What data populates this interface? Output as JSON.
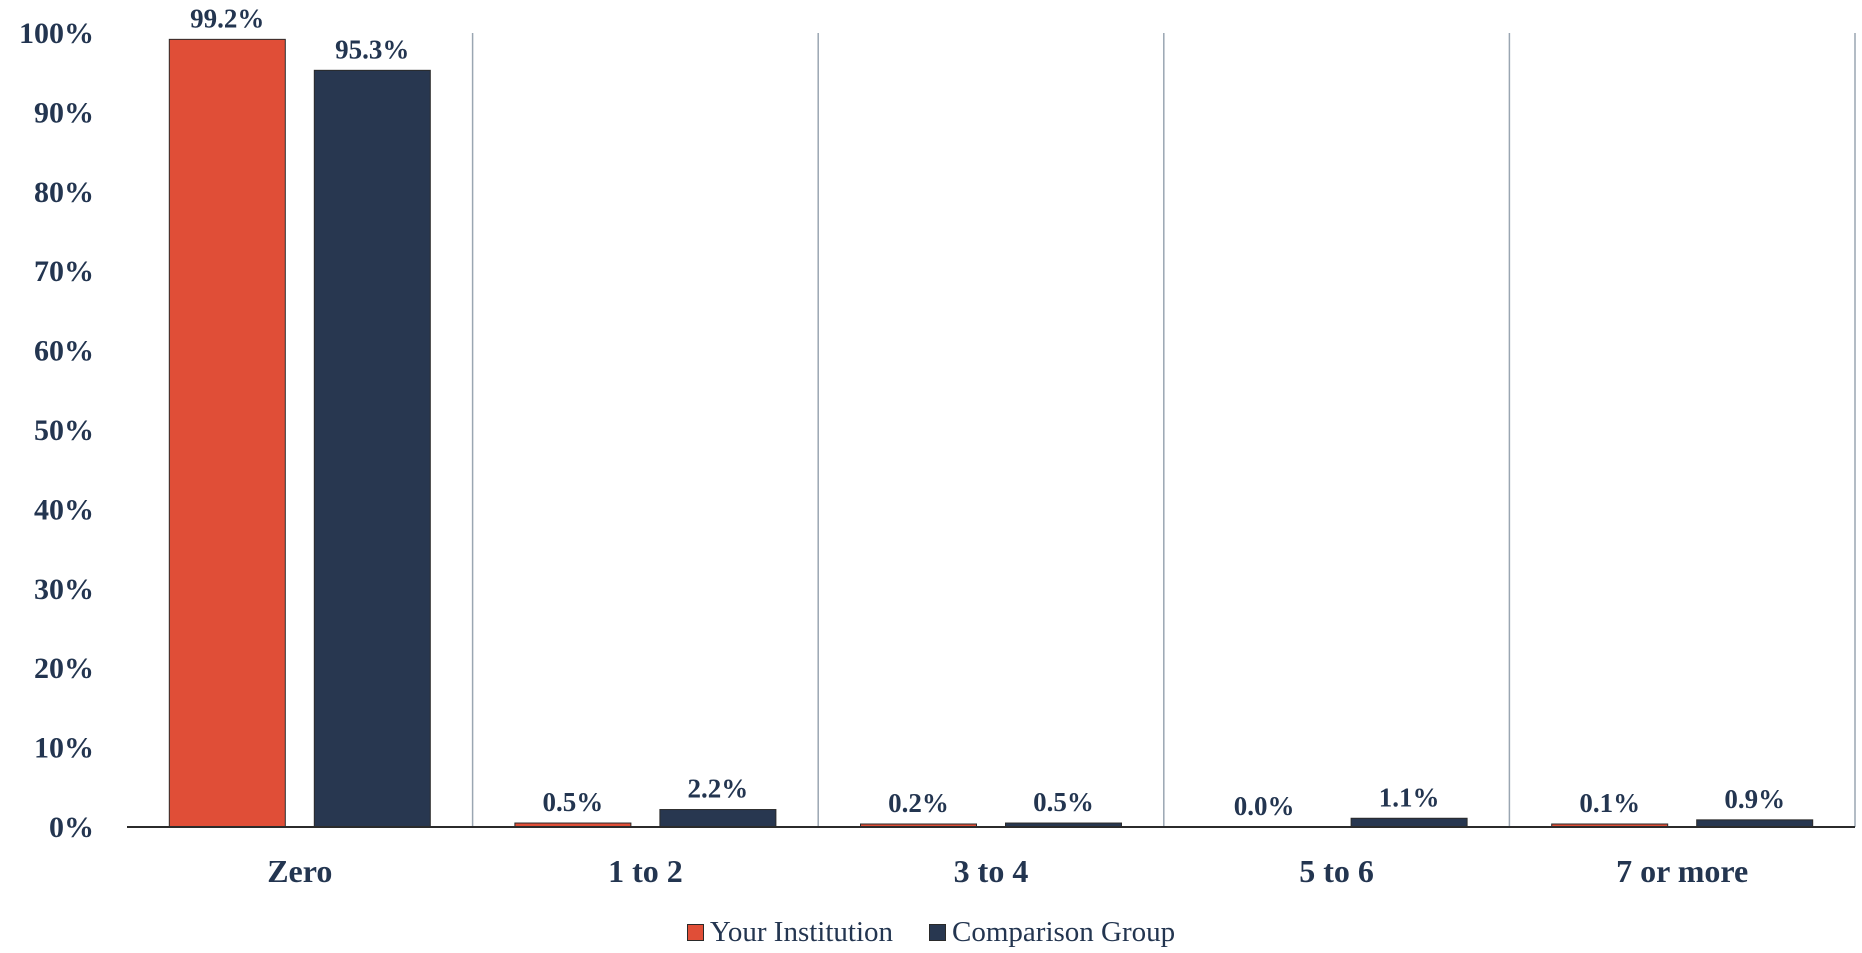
{
  "chart_data": {
    "type": "bar",
    "title": "",
    "xlabel": "",
    "ylabel": "",
    "categories": [
      "Zero",
      "1 to 2",
      "3 to 4",
      "5 to 6",
      "7 or more"
    ],
    "series": [
      {
        "name": "Your Institution",
        "color": "#E04E37",
        "values": [
          99.2,
          0.5,
          0.2,
          0.0,
          0.1
        ],
        "labels": [
          "99.2%",
          "0.5%",
          "0.2%",
          "0.0%",
          "0.1%"
        ]
      },
      {
        "name": "Comparison Group",
        "color": "#283750",
        "values": [
          95.3,
          2.2,
          0.5,
          1.1,
          0.9
        ],
        "labels": [
          "95.3%",
          "2.2%",
          "0.5%",
          "1.1%",
          "0.9%"
        ]
      }
    ],
    "ylim": [
      0,
      100
    ],
    "yticks": [
      0,
      10,
      20,
      30,
      40,
      50,
      60,
      70,
      80,
      90,
      100
    ],
    "ytick_labels": [
      "0%",
      "10%",
      "20%",
      "30%",
      "40%",
      "50%",
      "60%",
      "70%",
      "80%",
      "90%",
      "100%"
    ],
    "grid": "vertical category separators",
    "legend_position": "bottom"
  }
}
